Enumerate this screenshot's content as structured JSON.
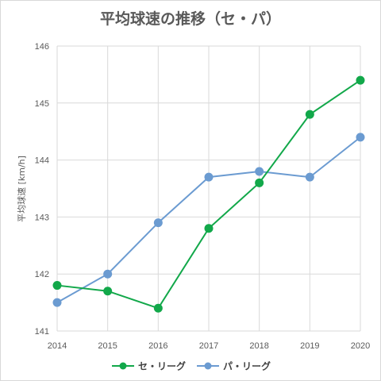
{
  "chart_data": {
    "type": "line",
    "title": "平均球速の推移（セ・パ）",
    "xlabel": "",
    "ylabel": "平均球速 [km/h]",
    "x": [
      "2014",
      "2015",
      "2016",
      "2017",
      "2018",
      "2019",
      "2020"
    ],
    "ylim": [
      141,
      146
    ],
    "yticks": [
      "141",
      "142",
      "143",
      "144",
      "145",
      "146"
    ],
    "grid": true,
    "legend_position": "bottom",
    "series": [
      {
        "name": "セ・リーグ",
        "color": "#12a84a",
        "values": [
          141.8,
          141.7,
          141.4,
          142.8,
          143.6,
          144.8,
          145.4
        ]
      },
      {
        "name": "パ・リーグ",
        "color": "#6b9bd1",
        "values": [
          141.5,
          142.0,
          142.9,
          143.7,
          143.8,
          143.7,
          144.4
        ]
      }
    ]
  }
}
